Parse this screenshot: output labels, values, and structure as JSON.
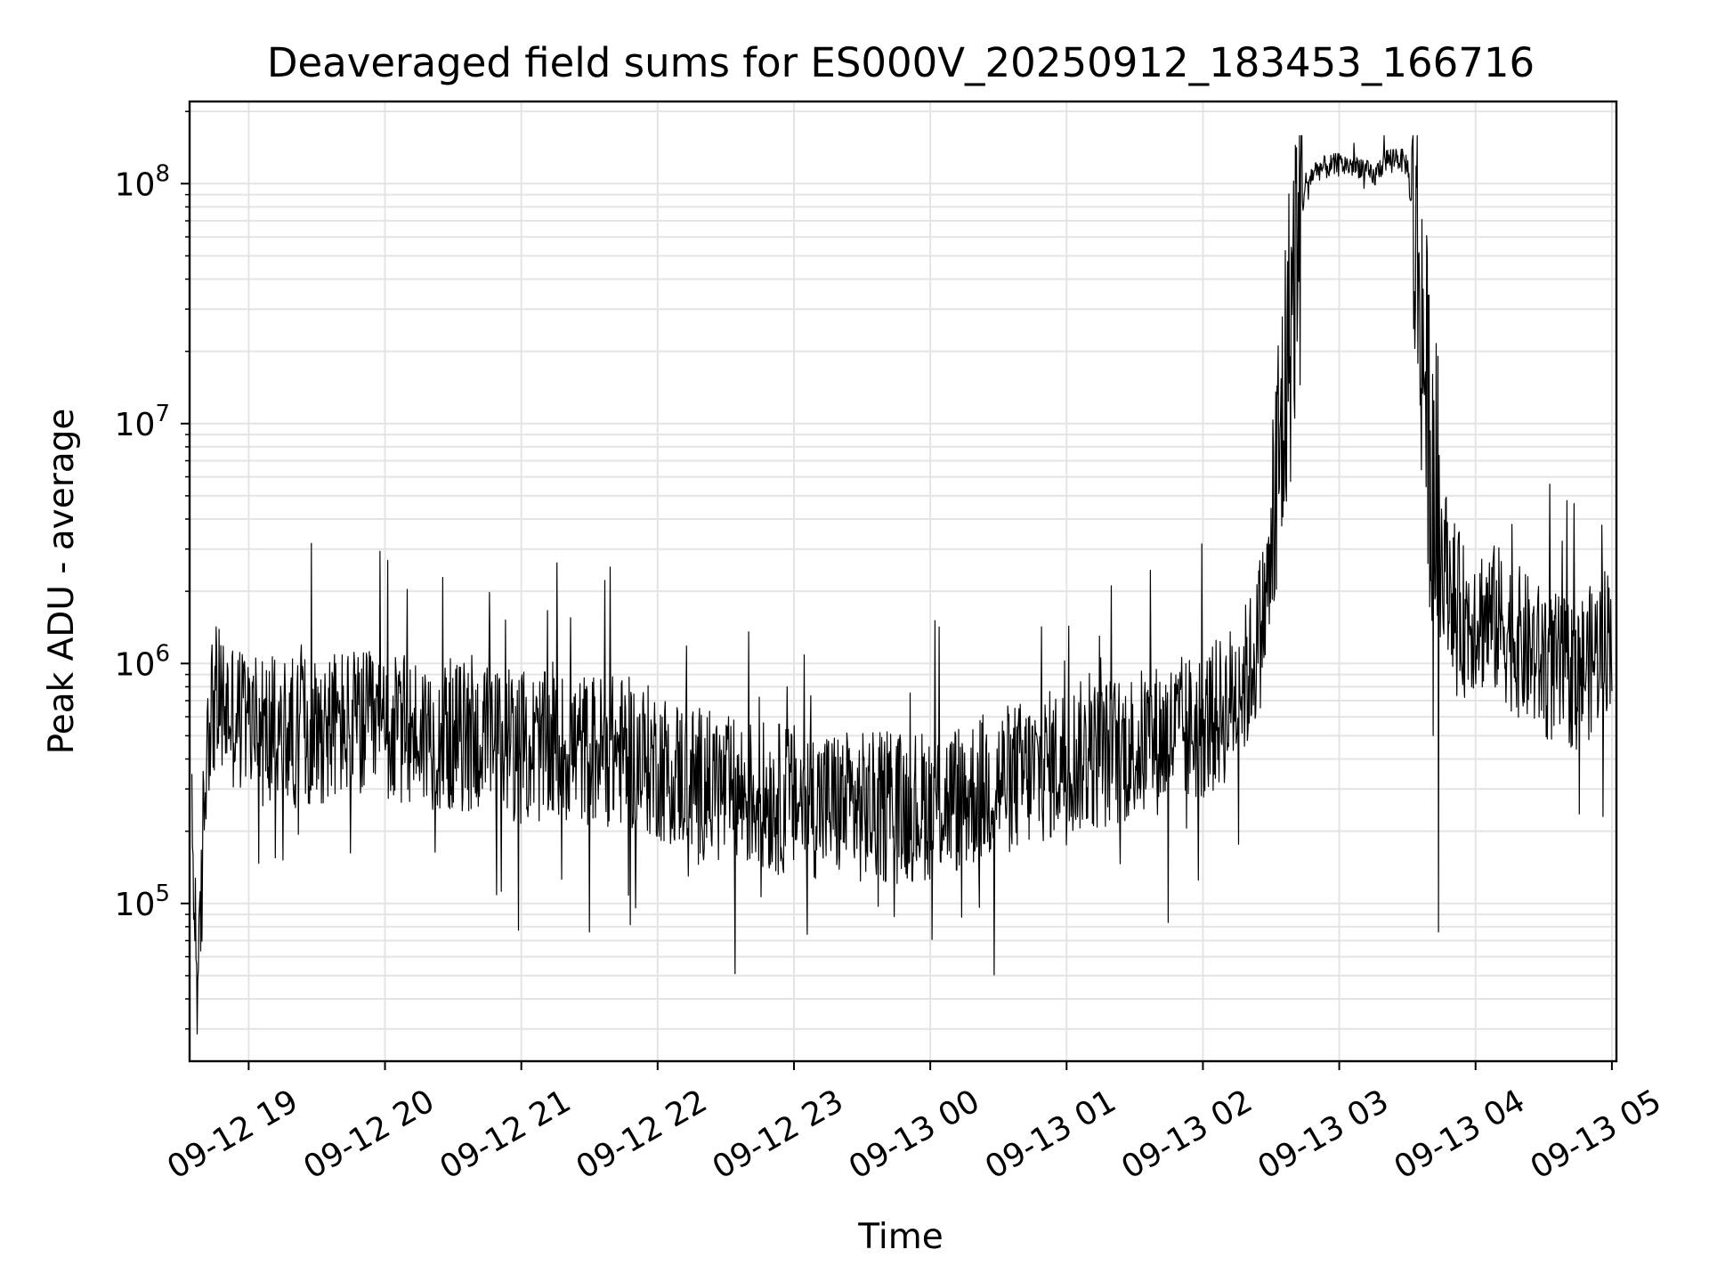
{
  "chart_data": {
    "type": "line",
    "title": "Deaveraged field sums for ES000V_20250912_183453_166716",
    "xlabel": "Time",
    "ylabel": "Peak ADU - average",
    "yscale": "log",
    "ylim": [
      22000,
      220000000
    ],
    "xlim": [
      "2025-09-12 18:34",
      "2025-09-13 05:02"
    ],
    "grid": true,
    "line_color": "#000000",
    "y_ticks": [
      {
        "value": 100000,
        "base": "10",
        "exp": "5"
      },
      {
        "value": 1000000,
        "base": "10",
        "exp": "6"
      },
      {
        "value": 10000000,
        "base": "10",
        "exp": "7"
      },
      {
        "value": 100000000,
        "base": "10",
        "exp": "8"
      }
    ],
    "x_ticks": [
      {
        "value": "2025-09-12 19:00",
        "label": "09-12 19"
      },
      {
        "value": "2025-09-12 20:00",
        "label": "09-12 20"
      },
      {
        "value": "2025-09-12 21:00",
        "label": "09-12 21"
      },
      {
        "value": "2025-09-12 22:00",
        "label": "09-12 22"
      },
      {
        "value": "2025-09-12 23:00",
        "label": "09-12 23"
      },
      {
        "value": "2025-09-13 00:00",
        "label": "09-13 00"
      },
      {
        "value": "2025-09-13 01:00",
        "label": "09-13 01"
      },
      {
        "value": "2025-09-13 02:00",
        "label": "09-13 02"
      },
      {
        "value": "2025-09-13 03:00",
        "label": "09-13 03"
      },
      {
        "value": "2025-09-13 04:00",
        "label": "09-13 04"
      },
      {
        "value": "2025-09-13 05:00",
        "label": "09-13 05"
      }
    ],
    "series": [
      {
        "x": [
          "2025-09-12 18:35",
          "2025-09-12 18:38",
          "2025-09-12 18:40",
          "2025-09-12 18:42",
          "2025-09-12 18:45",
          "2025-09-12 18:50",
          "2025-09-12 18:55",
          "2025-09-12 19:00",
          "2025-09-12 19:10",
          "2025-09-12 19:20",
          "2025-09-12 19:30",
          "2025-09-12 19:40",
          "2025-09-12 19:50",
          "2025-09-12 20:00",
          "2025-09-12 20:15",
          "2025-09-12 20:30",
          "2025-09-12 20:45",
          "2025-09-12 21:00",
          "2025-09-12 21:15",
          "2025-09-12 21:30",
          "2025-09-12 21:45",
          "2025-09-12 22:00",
          "2025-09-12 22:15",
          "2025-09-12 22:30",
          "2025-09-12 22:45",
          "2025-09-12 23:00",
          "2025-09-12 23:15",
          "2025-09-12 23:30",
          "2025-09-12 23:45",
          "2025-09-13 00:00",
          "2025-09-13 00:15",
          "2025-09-13 00:30",
          "2025-09-13 00:45",
          "2025-09-13 01:00",
          "2025-09-13 01:15",
          "2025-09-13 01:30",
          "2025-09-13 01:45",
          "2025-09-13 02:00",
          "2025-09-13 02:10",
          "2025-09-13 02:20",
          "2025-09-13 02:25",
          "2025-09-13 02:30",
          "2025-09-13 02:35",
          "2025-09-13 02:40",
          "2025-09-13 02:45",
          "2025-09-13 02:50",
          "2025-09-13 03:00",
          "2025-09-13 03:10",
          "2025-09-13 03:15",
          "2025-09-13 03:20",
          "2025-09-13 03:25",
          "2025-09-13 03:30",
          "2025-09-13 03:35",
          "2025-09-13 03:40",
          "2025-09-13 03:45",
          "2025-09-13 03:50",
          "2025-09-13 03:55",
          "2025-09-13 04:00",
          "2025-09-13 04:10",
          "2025-09-13 04:20",
          "2025-09-13 04:30",
          "2025-09-13 04:40",
          "2025-09-13 04:50",
          "2025-09-13 05:00"
        ],
        "y": [
          180000,
          40000,
          200000,
          600000,
          700000,
          650000,
          600000,
          550000,
          500000,
          520000,
          540000,
          560000,
          550000,
          520000,
          520000,
          500000,
          480000,
          450000,
          440000,
          440000,
          430000,
          380000,
          330000,
          290000,
          280000,
          270000,
          260000,
          250000,
          250000,
          260000,
          280000,
          320000,
          350000,
          400000,
          420000,
          450000,
          500000,
          550000,
          650000,
          900000,
          1300000,
          2500000,
          10000000,
          40000000,
          100000000,
          115000000,
          120000000,
          118000000,
          105000000,
          125000000,
          130000000,
          120000000,
          40000000,
          8000000,
          3000000,
          2000000,
          1500000,
          1600000,
          1500000,
          1200000,
          1000000,
          900000,
          1000000,
          1400000
        ]
      }
    ]
  }
}
